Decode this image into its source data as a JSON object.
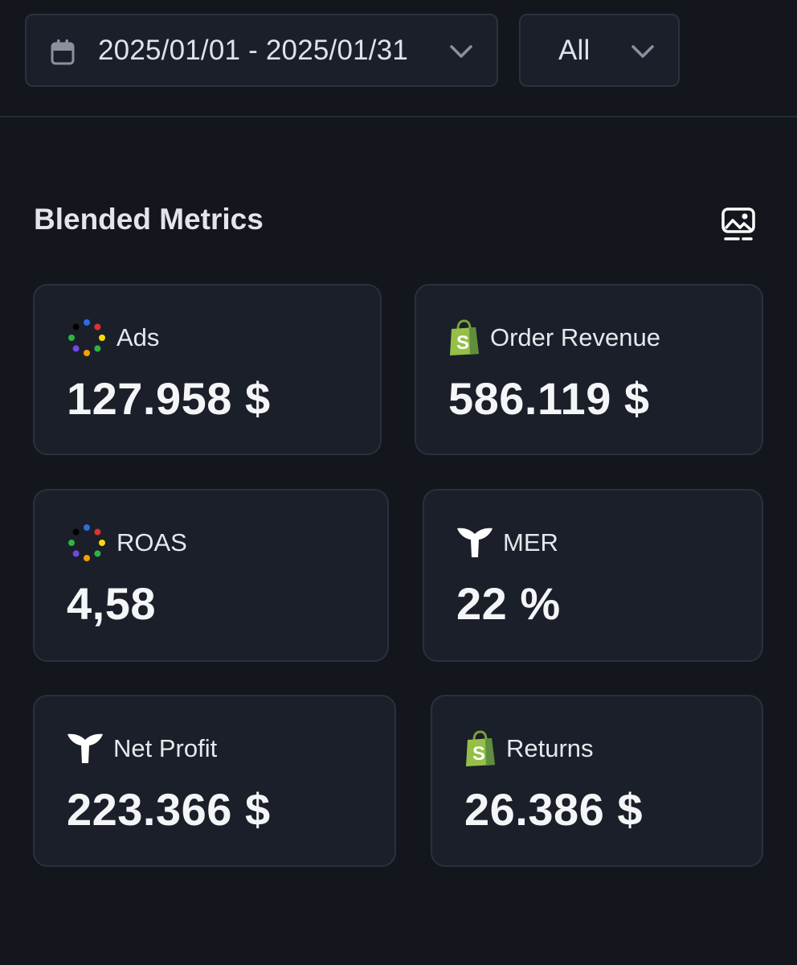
{
  "filters": {
    "date_range": "2025/01/01 - 2025/01/31",
    "channel": "All"
  },
  "section": {
    "title": "Blended Metrics"
  },
  "metrics": [
    {
      "name": "Ads",
      "value": "127.958 $",
      "icon": "google-dots-icon"
    },
    {
      "name": "Order Revenue",
      "value": "586.119 $",
      "icon": "shopify-bag-icon"
    },
    {
      "name": "ROAS",
      "value": "4,58",
      "icon": "google-dots-icon"
    },
    {
      "name": "MER",
      "value": "22 %",
      "icon": "whale-tail-icon"
    },
    {
      "name": "Net Profit",
      "value": "223.366 $",
      "icon": "whale-tail-icon"
    },
    {
      "name": "Returns",
      "value": "26.386 $",
      "icon": "shopify-bag-icon"
    }
  ],
  "colors": {
    "background": "#13161d",
    "card": "#1b1f29",
    "card_border": "#2a303c",
    "shopify_green": "#95bf47"
  }
}
